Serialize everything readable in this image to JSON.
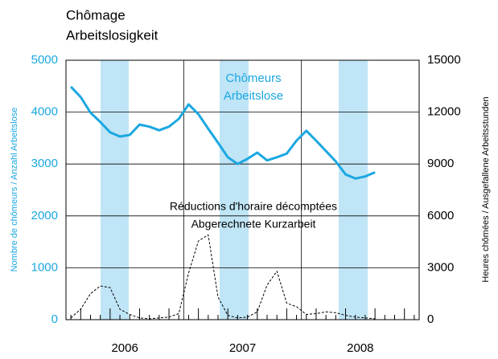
{
  "chart_data": {
    "type": "line",
    "title": "Chômage",
    "subtitle": "Arbeitslosigkeit",
    "ylabel": "Nombre de chômeurs / Anzahl Arbeitslose",
    "y2label": "Heures chômées / Ausgefallene Arbeitsstunden",
    "annotations": [
      "Chômeurs",
      "Arbeitslose",
      "Réductions d'horaire décomptées",
      "Abgerechnete Kurzarbeit"
    ],
    "year_labels": [
      "2006",
      "2007",
      "2008"
    ],
    "categories": [
      null,
      null,
      null,
      null,
      null,
      null,
      null,
      null,
      null,
      null,
      null,
      null,
      null,
      null,
      null,
      null,
      null,
      null,
      null,
      null,
      null,
      null,
      null,
      null,
      null,
      null,
      null,
      null,
      null,
      null,
      null,
      null,
      null,
      null,
      null,
      null
    ],
    "series": [
      {
        "color": "#1ba7e1",
        "style": "solid",
        "values": [
          4490,
          4290,
          3990,
          3810,
          3610,
          3530,
          3560,
          3760,
          3720,
          3650,
          3720,
          3870,
          4150,
          3960,
          3680,
          3410,
          3130,
          3000,
          3100,
          3220,
          3070,
          3130,
          3200,
          3450,
          3640,
          3450,
          3250,
          3050,
          2800,
          2720,
          2760,
          2840,
          null,
          null,
          null,
          null
        ]
      },
      {
        "color": "#000000",
        "style": "dashed",
        "axis": "y2",
        "values": [
          100,
          600,
          1500,
          1950,
          1850,
          600,
          300,
          100,
          50,
          100,
          150,
          350,
          2700,
          4550,
          4900,
          1300,
          250,
          100,
          150,
          450,
          2000,
          2800,
          950,
          750,
          300,
          350,
          450,
          400,
          250,
          150,
          100,
          50,
          null,
          null,
          null,
          null
        ]
      }
    ],
    "ylim": [
      0,
      5000
    ],
    "yticks": [
      0,
      1000,
      2000,
      3000,
      4000,
      5000
    ],
    "y2lim": [
      0,
      15000
    ],
    "y2ticks": [
      0,
      3000,
      6000,
      9000,
      12000,
      15000
    ],
    "grid": true
  }
}
